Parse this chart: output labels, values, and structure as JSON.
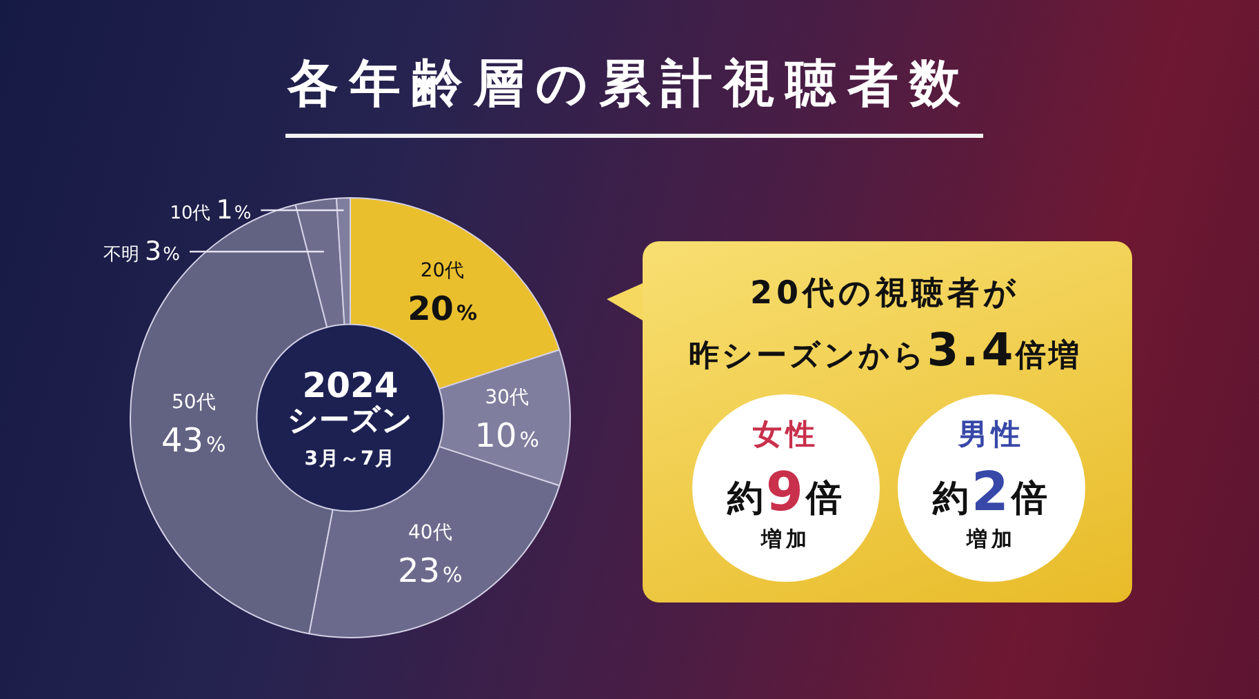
{
  "chart_data": {
    "type": "donut",
    "title": "各年齢層の累計視聴者数",
    "categories": [
      "20代",
      "30代",
      "40代",
      "50代",
      "不明",
      "10代"
    ],
    "values": [
      20,
      10,
      23,
      43,
      3,
      1
    ],
    "colors": [
      "#eabf2e",
      "#807e9e",
      "#6c6a8c",
      "#626283",
      "#6e6d8e",
      "#807e9e"
    ],
    "value_labels": [
      "20%",
      "10%",
      "23%",
      "43%",
      "3%",
      "1%"
    ],
    "legend": false,
    "annotations": [
      "2024",
      "シーズン",
      "3月～7月",
      "20代の視聴者が",
      "昨シーズンから3.4倍増",
      "女性",
      "約9倍",
      "増加",
      "男性",
      "約2倍",
      "増加"
    ]
  }
}
